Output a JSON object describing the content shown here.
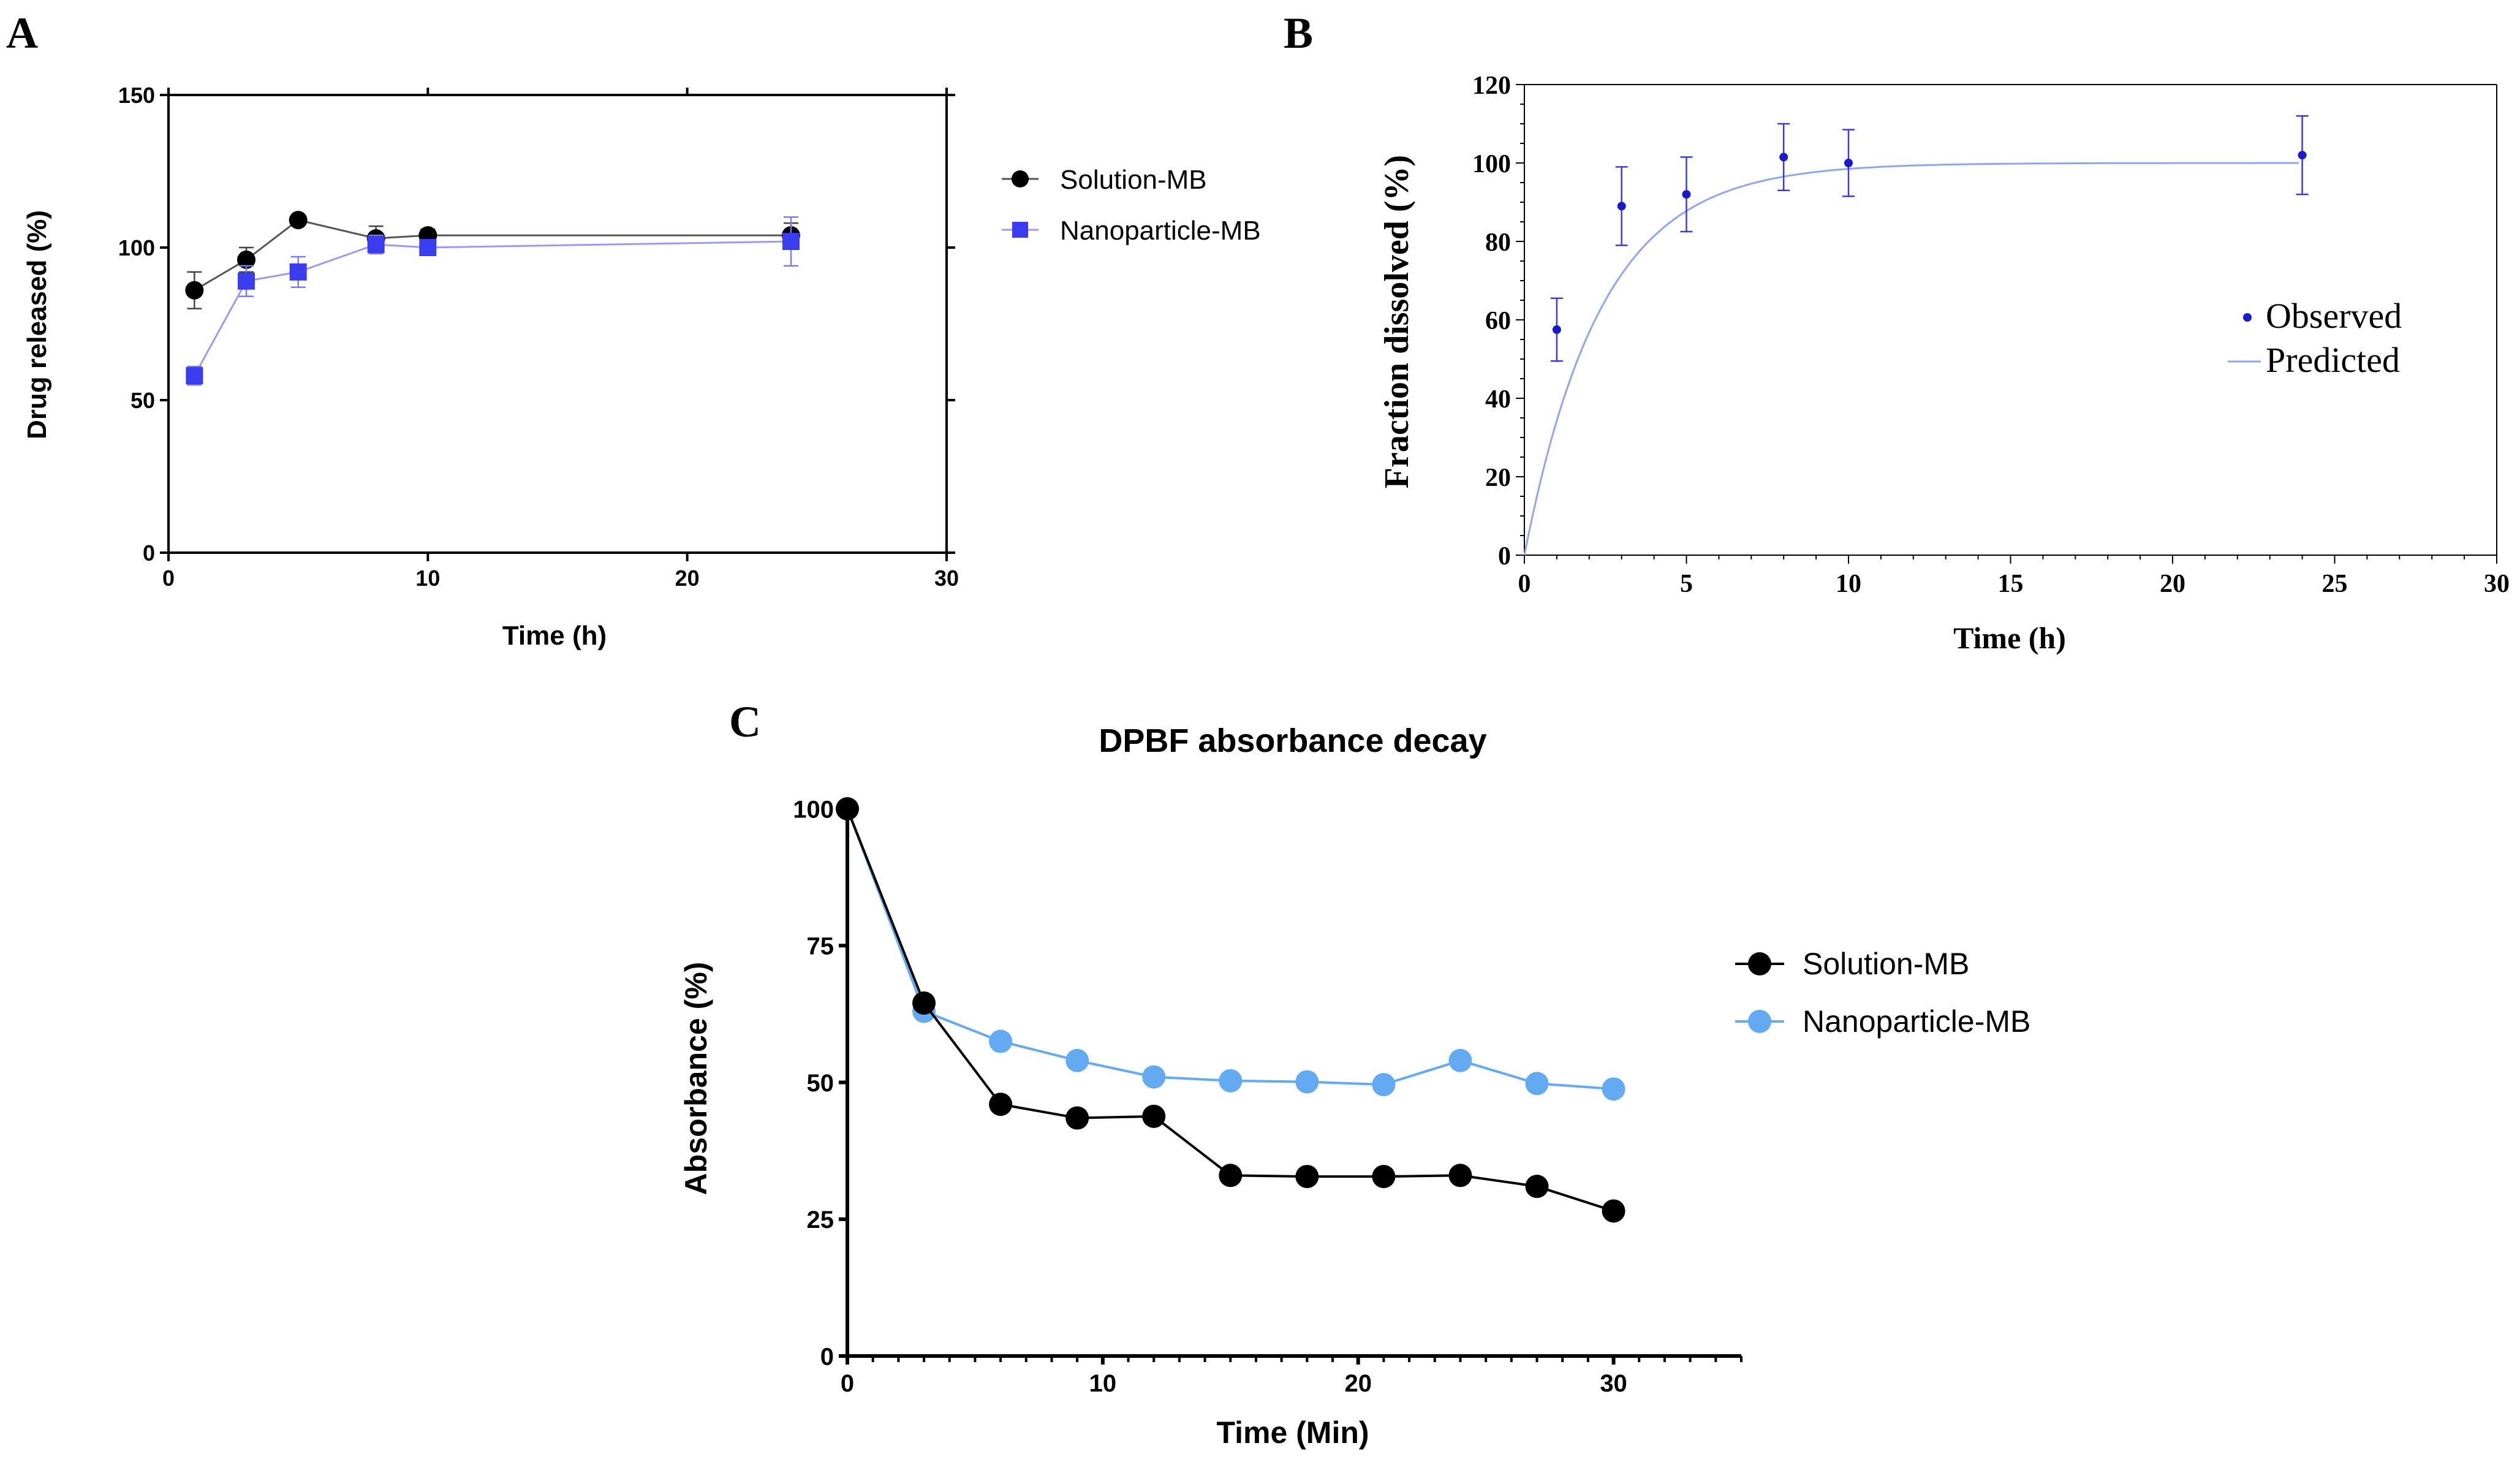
{
  "chart_data": [
    {
      "panel": "A",
      "type": "line",
      "title": "",
      "xlabel": "Time (h)",
      "ylabel": "Drug released (%)",
      "xlim": [
        0,
        30
      ],
      "ylim": [
        0,
        150
      ],
      "xticks": [
        0,
        10,
        20,
        30
      ],
      "yticks": [
        0,
        50,
        100,
        150
      ],
      "legend_position": "right",
      "series": [
        {
          "name": "Solution-MB",
          "color": "#000000",
          "line_color": "#555555",
          "marker": "circle",
          "x": [
            1,
            3,
            5,
            8,
            10,
            24
          ],
          "values": [
            86,
            96,
            109,
            103,
            104,
            104
          ],
          "errors": [
            6,
            4,
            1,
            4,
            2,
            4
          ]
        },
        {
          "name": "Nanoparticle-MB",
          "color": "#3b3bf0",
          "line_color": "#9a9af5",
          "marker": "square",
          "x": [
            1,
            3,
            5,
            8,
            10,
            24
          ],
          "values": [
            58,
            89,
            92,
            101,
            100,
            102
          ],
          "errors": [
            3,
            5,
            5,
            3,
            2,
            8
          ]
        }
      ]
    },
    {
      "panel": "B",
      "type": "scatter",
      "title": "",
      "xlabel": "Time (h)",
      "ylabel": "Fraction dissolved (%)",
      "xlim": [
        0,
        30
      ],
      "ylim": [
        0,
        120
      ],
      "xticks": [
        0,
        5,
        10,
        15,
        20,
        25,
        30
      ],
      "yticks": [
        0,
        20,
        40,
        60,
        80,
        100,
        120
      ],
      "legend_position": "right",
      "series": [
        {
          "name": "Observed",
          "color": "#1a1acc",
          "marker": "dot",
          "x": [
            1,
            3,
            5,
            8,
            10,
            24
          ],
          "values": [
            57.5,
            89,
            92,
            101.5,
            100,
            102
          ],
          "errors": [
            8,
            10,
            9.5,
            8.5,
            8.5,
            10
          ]
        },
        {
          "name": "Predicted",
          "color": "#8fa6ec",
          "marker": "line",
          "model": "first-order",
          "asymptote": 100,
          "rate_k": 0.42
        }
      ]
    },
    {
      "panel": "C",
      "type": "line",
      "title": "DPBF absorbance decay",
      "xlabel": "Time (Min)",
      "ylabel": "Absorbance (%)",
      "xlim": [
        0,
        35
      ],
      "ylim": [
        0,
        100
      ],
      "xticks": [
        0,
        10,
        20,
        30
      ],
      "yticks": [
        0,
        25,
        50,
        75,
        100
      ],
      "legend_position": "right",
      "series": [
        {
          "name": "Solution-MB",
          "color": "#000000",
          "line_color": "#000000",
          "marker": "circle",
          "x": [
            0,
            3,
            6,
            9,
            12,
            15,
            18,
            21,
            24,
            27,
            30
          ],
          "values": [
            100,
            64.5,
            46,
            43.5,
            43.8,
            33,
            32.8,
            32.8,
            33,
            31,
            26.5
          ]
        },
        {
          "name": "Nanoparticle-MB",
          "color": "#63aaf2",
          "line_color": "#63aaf2",
          "marker": "circle",
          "x": [
            0,
            3,
            6,
            9,
            12,
            15,
            18,
            21,
            24,
            27,
            30
          ],
          "values": [
            100,
            63,
            57.5,
            54,
            51,
            50.3,
            50.1,
            49.6,
            54,
            49.8,
            48.8
          ]
        }
      ]
    }
  ]
}
